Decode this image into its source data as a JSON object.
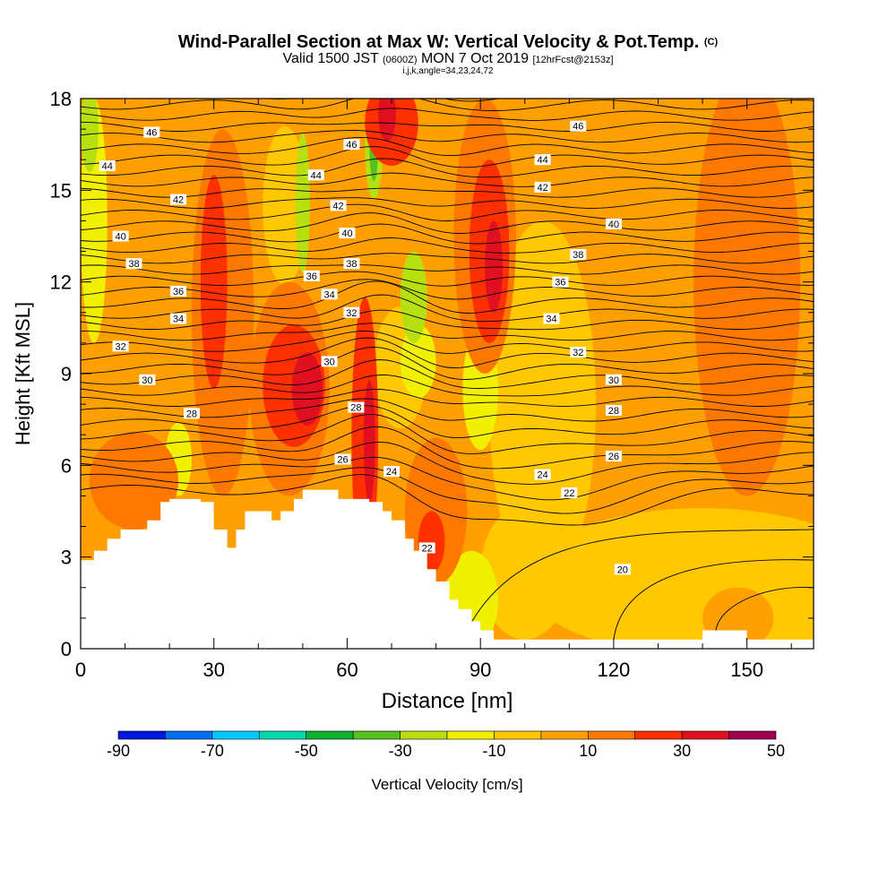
{
  "header": {
    "title": "Wind-Parallel Section at Max W: Vertical Velocity & Pot.Temp.",
    "title_mark": "(C)",
    "valid_prefix": "Valid 1500 JST",
    "valid_utc": "(0600Z)",
    "valid_date": "MON 7 Oct 2019",
    "forecast": "[12hrFcst@2153z]",
    "indices": "i,j,k,angle=34,23,24,72"
  },
  "chart_data": {
    "type": "heatmap",
    "xlabel": "Distance [nm]",
    "ylabel": "Height [Kft MSL]",
    "xlim": [
      0,
      165
    ],
    "ylim": [
      0,
      18
    ],
    "x_ticks": [
      "0",
      "30",
      "60",
      "90",
      "120",
      "150"
    ],
    "x_tick_values": [
      0,
      30,
      60,
      90,
      120,
      150
    ],
    "y_ticks": [
      "0",
      "3",
      "6",
      "9",
      "12",
      "15",
      "18"
    ],
    "y_tick_values": [
      0,
      3,
      6,
      9,
      12,
      15,
      18
    ],
    "terrain": {
      "distance_nm": [
        0,
        3,
        6,
        9,
        12,
        15,
        18,
        20,
        24,
        27,
        30,
        33,
        35,
        37,
        40,
        43,
        45,
        48,
        50,
        53,
        55,
        58,
        60,
        63,
        65,
        68,
        70,
        73,
        75,
        78,
        80,
        83,
        85,
        88,
        90,
        93,
        95,
        100,
        110,
        120,
        130,
        140,
        145,
        150,
        155,
        160,
        165
      ],
      "height_kft": [
        2.9,
        3.2,
        3.6,
        3.9,
        3.9,
        4.2,
        4.8,
        4.9,
        4.9,
        4.8,
        3.9,
        3.3,
        3.9,
        4.5,
        4.5,
        4.2,
        4.5,
        4.9,
        5.2,
        5.2,
        5.2,
        4.9,
        4.9,
        4.9,
        4.8,
        4.5,
        4.2,
        3.6,
        3.2,
        2.6,
        2.2,
        1.6,
        1.3,
        0.9,
        0.6,
        0.3,
        0.3,
        0.3,
        0.3,
        0.3,
        0.3,
        0.6,
        0.6,
        0.3,
        0.3,
        0.3,
        0.3
      ]
    },
    "theta_contour_labels": [
      {
        "text": "46",
        "x": 16,
        "y": 16.9
      },
      {
        "text": "44",
        "x": 6,
        "y": 15.8
      },
      {
        "text": "42",
        "x": 22,
        "y": 14.7
      },
      {
        "text": "40",
        "x": 9,
        "y": 13.5
      },
      {
        "text": "38",
        "x": 12,
        "y": 12.6
      },
      {
        "text": "36",
        "x": 22,
        "y": 11.7
      },
      {
        "text": "34",
        "x": 22,
        "y": 10.8
      },
      {
        "text": "32",
        "x": 9,
        "y": 9.9
      },
      {
        "text": "30",
        "x": 15,
        "y": 8.8
      },
      {
        "text": "28",
        "x": 25,
        "y": 7.7
      },
      {
        "text": "44",
        "x": 53,
        "y": 15.5
      },
      {
        "text": "46",
        "x": 61,
        "y": 16.5
      },
      {
        "text": "42",
        "x": 58,
        "y": 14.5
      },
      {
        "text": "40",
        "x": 60,
        "y": 13.6
      },
      {
        "text": "38",
        "x": 61,
        "y": 12.6
      },
      {
        "text": "36",
        "x": 52,
        "y": 12.2
      },
      {
        "text": "34",
        "x": 56,
        "y": 11.6
      },
      {
        "text": "32",
        "x": 61,
        "y": 11.0
      },
      {
        "text": "30",
        "x": 56,
        "y": 9.4
      },
      {
        "text": "28",
        "x": 62,
        "y": 7.9
      },
      {
        "text": "26",
        "x": 59,
        "y": 6.2
      },
      {
        "text": "24",
        "x": 70,
        "y": 5.8
      },
      {
        "text": "22",
        "x": 78,
        "y": 3.3
      },
      {
        "text": "46",
        "x": 112,
        "y": 17.1
      },
      {
        "text": "44",
        "x": 104,
        "y": 16.0
      },
      {
        "text": "42",
        "x": 104,
        "y": 15.1
      },
      {
        "text": "40",
        "x": 120,
        "y": 13.9
      },
      {
        "text": "38",
        "x": 112,
        "y": 12.9
      },
      {
        "text": "36",
        "x": 108,
        "y": 12.0
      },
      {
        "text": "34",
        "x": 106,
        "y": 10.8
      },
      {
        "text": "32",
        "x": 112,
        "y": 9.7
      },
      {
        "text": "30",
        "x": 120,
        "y": 8.8
      },
      {
        "text": "28",
        "x": 120,
        "y": 7.8
      },
      {
        "text": "26",
        "x": 120,
        "y": 6.3
      },
      {
        "text": "24",
        "x": 104,
        "y": 5.7
      },
      {
        "text": "22",
        "x": 110,
        "y": 5.1
      },
      {
        "text": "20",
        "x": 122,
        "y": 2.6
      }
    ],
    "colorbar": {
      "label": "Vertical Velocity [cm/s]",
      "tick_labels": [
        "-90",
        "-70",
        "-50",
        "-30",
        "-10",
        "10",
        "30",
        "50"
      ],
      "bins": [
        -90,
        -80,
        -70,
        -60,
        -50,
        -40,
        -30,
        -20,
        -10,
        0,
        10,
        20,
        30,
        40,
        50
      ],
      "colors": [
        "#0018e0",
        "#0070f0",
        "#00c8ff",
        "#00d8b0",
        "#10b030",
        "#58c020",
        "#b8e010",
        "#f0f000",
        "#ffc800",
        "#ffa000",
        "#ff7800",
        "#ff3000",
        "#e01020",
        "#a00050",
        "#680090"
      ]
    }
  }
}
